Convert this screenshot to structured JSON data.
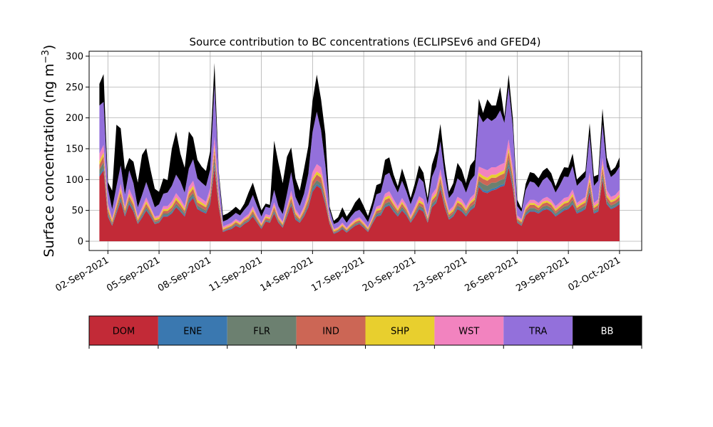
{
  "chart_data": {
    "type": "area",
    "title": "Source contribution to BC concentrations (ECLIPSEv6 and GFED4)",
    "ylabel": "Surface concentration (ng m",
    "ylabel_unit_sup": "−3",
    "ylabel_close": ")",
    "xlabel": "",
    "stacked": true,
    "grid": true,
    "ylim": [
      -15,
      308
    ],
    "y_ticks": [
      0,
      50,
      100,
      150,
      200,
      250,
      300
    ],
    "x_tick_labels": [
      "02-Sep-2021",
      "05-Sep-2021",
      "08-Sep-2021",
      "11-Sep-2021",
      "14-Sep-2021",
      "17-Sep-2021",
      "20-Sep-2021",
      "23-Sep-2021",
      "26-Sep-2021",
      "29-Sep-2021",
      "02-Oct-2021"
    ],
    "x_tick_days": [
      2,
      5,
      8,
      11,
      14,
      17,
      20,
      23,
      26,
      29,
      32
    ],
    "xlim_days": [
      0.9,
      33.3
    ],
    "x_unit": "day of September 2021 (32 = 02-Oct-2021)",
    "x": [
      1.5,
      1.75,
      2,
      2.25,
      2.5,
      2.75,
      3,
      3.25,
      3.5,
      3.75,
      4,
      4.25,
      4.5,
      4.75,
      5,
      5.25,
      5.5,
      5.75,
      6,
      6.25,
      6.5,
      6.75,
      7,
      7.25,
      7.5,
      7.75,
      8,
      8.25,
      8.5,
      8.75,
      9,
      9.25,
      9.5,
      9.75,
      10,
      10.25,
      10.5,
      10.75,
      11,
      11.25,
      11.5,
      11.75,
      12,
      12.25,
      12.5,
      12.75,
      13,
      13.25,
      13.5,
      13.75,
      14,
      14.25,
      14.5,
      14.75,
      15,
      15.25,
      15.5,
      15.75,
      16,
      16.25,
      16.5,
      16.75,
      17,
      17.25,
      17.5,
      17.75,
      18,
      18.25,
      18.5,
      18.75,
      19,
      19.25,
      19.5,
      19.75,
      20,
      20.25,
      20.5,
      20.75,
      21,
      21.25,
      21.5,
      21.75,
      22,
      22.25,
      22.5,
      22.75,
      23,
      23.25,
      23.5,
      23.75,
      24,
      24.25,
      24.5,
      24.75,
      25,
      25.25,
      25.5,
      25.75,
      26,
      26.25,
      26.5,
      26.75,
      27,
      27.25,
      27.5,
      27.75,
      28,
      28.25,
      28.5,
      28.75,
      29,
      29.25,
      29.5,
      29.75,
      30,
      30.25,
      30.5,
      30.75,
      31,
      31.25,
      31.5,
      31.75,
      32
    ],
    "series": [
      {
        "name": "DOM",
        "color": "#c22a37",
        "values": [
          105,
          115,
          40,
          25,
          45,
          65,
          40,
          60,
          48,
          28,
          38,
          50,
          40,
          28,
          30,
          40,
          40,
          45,
          55,
          48,
          40,
          62,
          70,
          52,
          48,
          45,
          60,
          120,
          55,
          15,
          18,
          20,
          25,
          22,
          28,
          32,
          40,
          30,
          20,
          32,
          30,
          45,
          30,
          22,
          40,
          58,
          35,
          30,
          40,
          55,
          80,
          90,
          85,
          60,
          28,
          12,
          15,
          20,
          14,
          20,
          25,
          28,
          22,
          15,
          28,
          40,
          42,
          55,
          58,
          48,
          40,
          50,
          42,
          30,
          40,
          52,
          48,
          30,
          55,
          62,
          85,
          55,
          35,
          40,
          52,
          48,
          40,
          50,
          55,
          88,
          80,
          78,
          82,
          84,
          88,
          90,
          120,
          85,
          30,
          25,
          42,
          48,
          48,
          45,
          50,
          52,
          48,
          40,
          45,
          50,
          52,
          60,
          45,
          48,
          52,
          80,
          45,
          48,
          100,
          60,
          52,
          55,
          60
        ]
      },
      {
        "name": "ENE",
        "color": "#3a78b0",
        "values": [
          3,
          3,
          2,
          1,
          2,
          3,
          2,
          3,
          2,
          1,
          2,
          2,
          2,
          1,
          1,
          2,
          2,
          2,
          2,
          2,
          2,
          3,
          3,
          2,
          2,
          2,
          3,
          5,
          2,
          1,
          1,
          1,
          1,
          1,
          1,
          1,
          2,
          1,
          1,
          1,
          1,
          2,
          1,
          1,
          2,
          2,
          2,
          1,
          2,
          2,
          3,
          3,
          3,
          2,
          1,
          1,
          1,
          1,
          1,
          1,
          1,
          1,
          1,
          1,
          1,
          2,
          2,
          2,
          2,
          2,
          2,
          2,
          2,
          1,
          2,
          2,
          2,
          1,
          2,
          2,
          3,
          2,
          1,
          2,
          2,
          2,
          2,
          2,
          2,
          3,
          3,
          3,
          3,
          3,
          3,
          3,
          4,
          3,
          1,
          1,
          2,
          2,
          2,
          2,
          2,
          2,
          2,
          2,
          2,
          2,
          2,
          2,
          2,
          2,
          2,
          3,
          2,
          2,
          3,
          2,
          2,
          2,
          2
        ]
      },
      {
        "name": "FLR",
        "color": "#6c8070",
        "values": [
          8,
          10,
          4,
          2,
          3,
          5,
          3,
          4,
          4,
          2,
          3,
          4,
          3,
          2,
          2,
          3,
          3,
          3,
          4,
          4,
          3,
          5,
          5,
          4,
          4,
          3,
          5,
          10,
          4,
          1,
          1,
          2,
          2,
          2,
          2,
          2,
          3,
          2,
          2,
          2,
          2,
          3,
          2,
          2,
          3,
          4,
          3,
          2,
          3,
          4,
          6,
          6,
          6,
          4,
          2,
          1,
          1,
          2,
          1,
          2,
          2,
          2,
          2,
          1,
          2,
          3,
          3,
          4,
          4,
          4,
          3,
          4,
          3,
          2,
          3,
          4,
          4,
          2,
          4,
          4,
          6,
          4,
          3,
          3,
          4,
          4,
          3,
          4,
          4,
          7,
          10,
          9,
          10,
          8,
          8,
          8,
          10,
          7,
          2,
          2,
          3,
          4,
          4,
          3,
          4,
          4,
          4,
          3,
          4,
          4,
          4,
          5,
          3,
          4,
          4,
          6,
          3,
          4,
          7,
          4,
          4,
          4,
          4
        ]
      },
      {
        "name": "IND",
        "color": "#cc6655",
        "values": [
          8,
          10,
          5,
          3,
          5,
          7,
          4,
          6,
          5,
          3,
          4,
          5,
          4,
          3,
          3,
          4,
          4,
          5,
          6,
          5,
          4,
          6,
          7,
          5,
          5,
          5,
          6,
          12,
          6,
          2,
          2,
          2,
          3,
          2,
          3,
          3,
          4,
          3,
          2,
          3,
          3,
          5,
          3,
          2,
          4,
          6,
          4,
          3,
          4,
          6,
          8,
          9,
          9,
          6,
          3,
          2,
          2,
          2,
          2,
          2,
          3,
          3,
          2,
          2,
          3,
          4,
          4,
          6,
          6,
          5,
          4,
          5,
          4,
          3,
          4,
          5,
          5,
          3,
          5,
          6,
          8,
          6,
          4,
          4,
          5,
          5,
          4,
          5,
          6,
          8,
          8,
          8,
          8,
          8,
          8,
          9,
          11,
          8,
          3,
          3,
          4,
          5,
          5,
          4,
          5,
          5,
          5,
          4,
          4,
          5,
          5,
          6,
          4,
          5,
          5,
          8,
          4,
          5,
          9,
          6,
          5,
          5,
          6
        ]
      },
      {
        "name": "SHP",
        "color": "#e8cf2e",
        "values": [
          6,
          6,
          4,
          3,
          4,
          5,
          3,
          4,
          4,
          3,
          3,
          4,
          3,
          3,
          3,
          3,
          3,
          4,
          4,
          4,
          3,
          4,
          5,
          4,
          4,
          3,
          4,
          7,
          4,
          2,
          2,
          2,
          2,
          2,
          2,
          2,
          3,
          2,
          2,
          2,
          2,
          3,
          2,
          2,
          3,
          4,
          3,
          2,
          3,
          4,
          5,
          5,
          5,
          4,
          2,
          2,
          2,
          2,
          2,
          2,
          2,
          2,
          2,
          2,
          2,
          3,
          3,
          4,
          4,
          3,
          3,
          3,
          3,
          2,
          3,
          4,
          3,
          2,
          4,
          4,
          5,
          4,
          3,
          3,
          3,
          3,
          3,
          3,
          4,
          5,
          5,
          5,
          5,
          5,
          5,
          5,
          6,
          5,
          2,
          2,
          3,
          3,
          3,
          3,
          3,
          3,
          3,
          3,
          3,
          3,
          3,
          4,
          3,
          3,
          3,
          5,
          3,
          3,
          6,
          4,
          3,
          3,
          4
        ]
      },
      {
        "name": "WST",
        "color": "#f283bf",
        "values": [
          12,
          12,
          6,
          3,
          5,
          8,
          4,
          8,
          6,
          3,
          5,
          6,
          4,
          3,
          3,
          5,
          5,
          6,
          7,
          6,
          5,
          8,
          8,
          7,
          6,
          6,
          8,
          15,
          7,
          3,
          3,
          3,
          3,
          3,
          3,
          4,
          5,
          4,
          3,
          4,
          4,
          5,
          4,
          3,
          5,
          8,
          5,
          4,
          5,
          8,
          10,
          12,
          12,
          8,
          3,
          2,
          2,
          3,
          2,
          3,
          3,
          3,
          3,
          2,
          3,
          4,
          5,
          6,
          7,
          6,
          5,
          6,
          5,
          4,
          5,
          6,
          6,
          4,
          6,
          8,
          10,
          7,
          4,
          5,
          6,
          6,
          5,
          6,
          6,
          10,
          12,
          12,
          12,
          12,
          12,
          12,
          14,
          10,
          4,
          3,
          4,
          5,
          5,
          5,
          5,
          6,
          5,
          5,
          5,
          6,
          6,
          7,
          5,
          5,
          6,
          9,
          5,
          6,
          10,
          7,
          6,
          6,
          7
        ]
      },
      {
        "name": "TRA",
        "color": "#9370db",
        "values": [
          78,
          70,
          25,
          15,
          25,
          30,
          20,
          30,
          25,
          15,
          20,
          25,
          20,
          15,
          18,
          20,
          22,
          25,
          30,
          28,
          22,
          30,
          35,
          28,
          26,
          25,
          30,
          85,
          30,
          8,
          8,
          10,
          10,
          10,
          12,
          15,
          18,
          15,
          10,
          12,
          12,
          20,
          15,
          12,
          20,
          30,
          20,
          15,
          20,
          30,
          65,
          85,
          60,
          40,
          12,
          8,
          8,
          10,
          8,
          10,
          12,
          12,
          10,
          8,
          12,
          20,
          20,
          30,
          30,
          25,
          22,
          28,
          22,
          18,
          22,
          30,
          28,
          18,
          28,
          35,
          45,
          30,
          20,
          22,
          30,
          28,
          22,
          28,
          30,
          85,
          75,
          85,
          75,
          80,
          88,
          65,
          85,
          65,
          15,
          12,
          25,
          30,
          28,
          25,
          30,
          32,
          28,
          22,
          28,
          35,
          32,
          38,
          28,
          30,
          32,
          60,
          28,
          30,
          55,
          38,
          32,
          35,
          38
        ]
      },
      {
        "name": "BB",
        "color": "#000000",
        "values": [
          35,
          45,
          10,
          30,
          100,
          60,
          40,
          20,
          35,
          40,
          65,
          55,
          40,
          30,
          20,
          25,
          20,
          60,
          70,
          45,
          40,
          60,
          35,
          30,
          26,
          25,
          30,
          35,
          5,
          10,
          10,
          10,
          10,
          8,
          10,
          20,
          20,
          15,
          10,
          5,
          5,
          80,
          70,
          50,
          60,
          40,
          30,
          25,
          40,
          45,
          50,
          60,
          50,
          50,
          5,
          5,
          8,
          15,
          10,
          10,
          15,
          20,
          15,
          10,
          12,
          15,
          15,
          25,
          25,
          15,
          10,
          20,
          15,
          10,
          15,
          20,
          15,
          10,
          20,
          25,
          28,
          20,
          10,
          15,
          25,
          20,
          15,
          25,
          25,
          25,
          15,
          30,
          25,
          20,
          38,
          10,
          20,
          15,
          10,
          5,
          10,
          15,
          15,
          15,
          15,
          15,
          15,
          10,
          15,
          15,
          15,
          20,
          10,
          10,
          10,
          20,
          15,
          10,
          25,
          15,
          10,
          10,
          15
        ]
      }
    ],
    "legend": {
      "placement": "bottom",
      "entries": [
        {
          "label": "DOM",
          "color": "#c22a37",
          "text_color": "#000000"
        },
        {
          "label": "ENE",
          "color": "#3a78b0",
          "text_color": "#000000"
        },
        {
          "label": "FLR",
          "color": "#6c8070",
          "text_color": "#000000"
        },
        {
          "label": "IND",
          "color": "#cc6655",
          "text_color": "#000000"
        },
        {
          "label": "SHP",
          "color": "#e8cf2e",
          "text_color": "#000000"
        },
        {
          "label": "WST",
          "color": "#f283bf",
          "text_color": "#000000"
        },
        {
          "label": "TRA",
          "color": "#9370db",
          "text_color": "#000000"
        },
        {
          "label": "BB",
          "color": "#000000",
          "text_color": "#ffffff"
        }
      ]
    }
  }
}
